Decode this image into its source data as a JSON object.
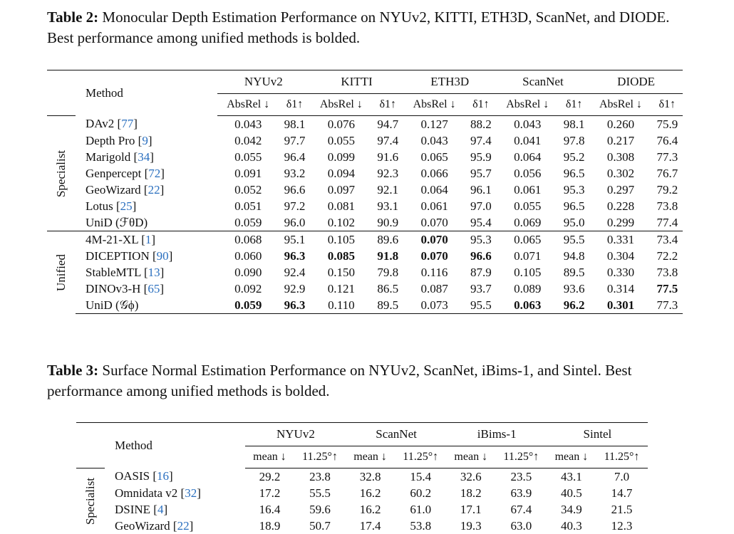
{
  "table2": {
    "label": "Table 2:",
    "caption": "Monocular Depth Estimation Performance on NYUv2, KITTI, ETH3D, ScanNet, and DIODE. Best performance among unified methods is bolded.",
    "method_header": "Method",
    "datasets": [
      "NYUv2",
      "KITTI",
      "ETH3D",
      "ScanNet",
      "DIODE"
    ],
    "metric1": "AbsRel ↓",
    "metric2": "δ1↑",
    "groups": [
      {
        "name": "Specialist",
        "rows": [
          {
            "name": "DAv2 [",
            "ref": "77",
            "close": "]",
            "values": [
              "0.043",
              "98.1",
              "0.076",
              "94.7",
              "0.127",
              "88.2",
              "0.043",
              "98.1",
              "0.260",
              "75.9"
            ],
            "bold": []
          },
          {
            "name": "Depth Pro [",
            "ref": "9",
            "close": "]",
            "values": [
              "0.042",
              "97.7",
              "0.055",
              "97.4",
              "0.043",
              "97.4",
              "0.041",
              "97.8",
              "0.217",
              "76.4"
            ],
            "bold": []
          },
          {
            "name": "Marigold [",
            "ref": "34",
            "close": "]",
            "values": [
              "0.055",
              "96.4",
              "0.099",
              "91.6",
              "0.065",
              "95.9",
              "0.064",
              "95.2",
              "0.308",
              "77.3"
            ],
            "bold": []
          },
          {
            "name": "Genpercept [",
            "ref": "72",
            "close": "]",
            "values": [
              "0.091",
              "93.2",
              "0.094",
              "92.3",
              "0.066",
              "95.7",
              "0.056",
              "96.5",
              "0.302",
              "76.7"
            ],
            "bold": []
          },
          {
            "name": "GeoWizard [",
            "ref": "22",
            "close": "]",
            "values": [
              "0.052",
              "96.6",
              "0.097",
              "92.1",
              "0.064",
              "96.1",
              "0.061",
              "95.3",
              "0.297",
              "79.2"
            ],
            "bold": []
          },
          {
            "name": "Lotus [",
            "ref": "25",
            "close": "]",
            "values": [
              "0.051",
              "97.2",
              "0.081",
              "93.1",
              "0.061",
              "97.0",
              "0.055",
              "96.5",
              "0.228",
              "73.8"
            ],
            "bold": []
          },
          {
            "name": "UniD (ℱθD)",
            "ref": "",
            "close": "",
            "values": [
              "0.059",
              "96.0",
              "0.102",
              "90.9",
              "0.070",
              "95.4",
              "0.069",
              "95.0",
              "0.299",
              "77.4"
            ],
            "bold": []
          }
        ]
      },
      {
        "name": "Unified",
        "rows": [
          {
            "name": "4M-21-XL [",
            "ref": "1",
            "close": "]",
            "values": [
              "0.068",
              "95.1",
              "0.105",
              "89.6",
              "0.070",
              "95.3",
              "0.065",
              "95.5",
              "0.331",
              "73.4"
            ],
            "bold": [
              4
            ]
          },
          {
            "name": "DICEPTION [",
            "ref": "90",
            "close": "]",
            "values": [
              "0.060",
              "96.3",
              "0.085",
              "91.8",
              "0.070",
              "96.6",
              "0.071",
              "94.8",
              "0.304",
              "72.2"
            ],
            "bold": [
              1,
              2,
              3,
              4,
              5
            ]
          },
          {
            "name": "StableMTL [",
            "ref": "13",
            "close": "]",
            "values": [
              "0.090",
              "92.4",
              "0.150",
              "79.8",
              "0.116",
              "87.9",
              "0.105",
              "89.5",
              "0.330",
              "73.8"
            ],
            "bold": []
          },
          {
            "name": "DINOv3-H [",
            "ref": "65",
            "close": "]",
            "values": [
              "0.092",
              "92.9",
              "0.121",
              "86.5",
              "0.087",
              "93.7",
              "0.089",
              "93.6",
              "0.314",
              "77.5"
            ],
            "bold": [
              9
            ]
          },
          {
            "name": "UniD (𝒢ϕ)",
            "ref": "",
            "close": "",
            "values": [
              "0.059",
              "96.3",
              "0.110",
              "89.5",
              "0.073",
              "95.5",
              "0.063",
              "96.2",
              "0.301",
              "77.3"
            ],
            "bold": [
              0,
              1,
              6,
              7,
              8
            ]
          }
        ]
      }
    ]
  },
  "table3": {
    "label": "Table 3:",
    "caption": "Surface Normal Estimation Performance on NYUv2, ScanNet, iBims-1, and Sintel. Best performance among unified methods is bolded.",
    "method_header": "Method",
    "datasets": [
      "NYUv2",
      "ScanNet",
      "iBims-1",
      "Sintel"
    ],
    "metric1": "mean ↓",
    "metric2": "11.25°↑",
    "group_name": "Specialist",
    "rows": [
      {
        "name": "OASIS [",
        "ref": "16",
        "close": "]",
        "values": [
          "29.2",
          "23.8",
          "32.8",
          "15.4",
          "32.6",
          "23.5",
          "43.1",
          "7.0"
        ]
      },
      {
        "name": "Omnidata v2 [",
        "ref": "32",
        "close": "]",
        "values": [
          "17.2",
          "55.5",
          "16.2",
          "60.2",
          "18.2",
          "63.9",
          "40.5",
          "14.7"
        ]
      },
      {
        "name": "DSINE [",
        "ref": "4",
        "close": "]",
        "values": [
          "16.4",
          "59.6",
          "16.2",
          "61.0",
          "17.1",
          "67.4",
          "34.9",
          "21.5"
        ]
      },
      {
        "name": "GeoWizard [",
        "ref": "22",
        "close": "]",
        "values": [
          "18.9",
          "50.7",
          "17.4",
          "53.8",
          "19.3",
          "63.0",
          "40.3",
          "12.3"
        ]
      }
    ]
  }
}
